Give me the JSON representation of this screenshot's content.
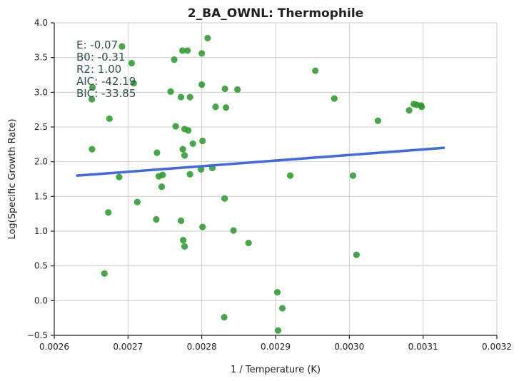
{
  "chart_data": {
    "type": "scatter",
    "title": "2_BA_OWNL: Thermophile",
    "xlabel": "1 / Temperature (K)",
    "ylabel": "Log(Specific Growth Rate)",
    "xlim": [
      0.0026,
      0.0032
    ],
    "ylim": [
      -0.5,
      4.0
    ],
    "xticks": [
      "0.0026",
      "0.0027",
      "0.0028",
      "0.0029",
      "0.0030",
      "0.0031",
      "0.0032"
    ],
    "yticks": [
      "−0.5",
      "0.0",
      "0.5",
      "1.0",
      "1.5",
      "2.0",
      "2.5",
      "3.0",
      "3.5",
      "4.0"
    ],
    "grid": true,
    "point_color": "#2e9a2e",
    "line_color": "#4169e1",
    "annotations": [
      "E:  -0.07",
      "B0:  -0.31",
      "R2:  1.00",
      "AIC: -42.19",
      "BIC: -33.85"
    ],
    "fit_line": {
      "x": [
        0.002631,
        0.003128
      ],
      "y": [
        1.8,
        2.2
      ]
    },
    "points": [
      {
        "x": 0.0026918,
        "y": 3.66
      },
      {
        "x": 0.0027049,
        "y": 3.42
      },
      {
        "x": 0.0027077,
        "y": 3.13
      },
      {
        "x": 0.0026518,
        "y": 3.07
      },
      {
        "x": 0.0026509,
        "y": 2.9
      },
      {
        "x": 0.0026748,
        "y": 2.62
      },
      {
        "x": 0.0026512,
        "y": 2.18
      },
      {
        "x": 0.002688,
        "y": 1.78
      },
      {
        "x": 0.0026733,
        "y": 1.27
      },
      {
        "x": 0.002668,
        "y": 0.39
      },
      {
        "x": 0.0028079,
        "y": 3.78
      },
      {
        "x": 0.0027738,
        "y": 3.6
      },
      {
        "x": 0.0027806,
        "y": 3.6
      },
      {
        "x": 0.0028,
        "y": 3.56
      },
      {
        "x": 0.0027626,
        "y": 3.47
      },
      {
        "x": 0.0028,
        "y": 3.11
      },
      {
        "x": 0.0027578,
        "y": 3.01
      },
      {
        "x": 0.0027718,
        "y": 2.93
      },
      {
        "x": 0.002784,
        "y": 2.93
      },
      {
        "x": 0.0028314,
        "y": 3.05
      },
      {
        "x": 0.0028484,
        "y": 3.04
      },
      {
        "x": 0.0028187,
        "y": 2.79
      },
      {
        "x": 0.0028328,
        "y": 2.78
      },
      {
        "x": 0.0027646,
        "y": 2.51
      },
      {
        "x": 0.0027767,
        "y": 2.47
      },
      {
        "x": 0.0027816,
        "y": 2.45
      },
      {
        "x": 0.002801,
        "y": 2.3
      },
      {
        "x": 0.0027879,
        "y": 2.26
      },
      {
        "x": 0.0027743,
        "y": 2.18
      },
      {
        "x": 0.0027393,
        "y": 2.13
      },
      {
        "x": 0.0027767,
        "y": 2.09
      },
      {
        "x": 0.0028143,
        "y": 1.91
      },
      {
        "x": 0.002799,
        "y": 1.89
      },
      {
        "x": 0.002784,
        "y": 1.82
      },
      {
        "x": 0.002747,
        "y": 1.81
      },
      {
        "x": 0.0027417,
        "y": 1.79
      },
      {
        "x": 0.0027456,
        "y": 1.64
      },
      {
        "x": 0.0028309,
        "y": 1.47
      },
      {
        "x": 0.0027126,
        "y": 1.42
      },
      {
        "x": 0.0027383,
        "y": 1.17
      },
      {
        "x": 0.0027718,
        "y": 1.15
      },
      {
        "x": 0.002801,
        "y": 1.06
      },
      {
        "x": 0.002843,
        "y": 1.01
      },
      {
        "x": 0.0027748,
        "y": 0.87
      },
      {
        "x": 0.0027767,
        "y": 0.78
      },
      {
        "x": 0.0028634,
        "y": 0.83
      },
      {
        "x": 0.0028304,
        "y": -0.24
      },
      {
        "x": 0.0029024,
        "y": 0.12
      },
      {
        "x": 0.0029092,
        "y": -0.11
      },
      {
        "x": 0.0029034,
        "y": -0.43
      },
      {
        "x": 0.0029199,
        "y": 1.8
      },
      {
        "x": 0.0029539,
        "y": 3.31
      },
      {
        "x": 0.0029796,
        "y": 2.91
      },
      {
        "x": 0.0030049,
        "y": 1.8
      },
      {
        "x": 0.0030097,
        "y": 0.66
      },
      {
        "x": 0.0030388,
        "y": 2.59
      },
      {
        "x": 0.0030811,
        "y": 2.74
      },
      {
        "x": 0.0030874,
        "y": 2.83
      },
      {
        "x": 0.0030913,
        "y": 2.82
      },
      {
        "x": 0.0030971,
        "y": 2.81
      },
      {
        "x": 0.0030981,
        "y": 2.79
      }
    ]
  }
}
